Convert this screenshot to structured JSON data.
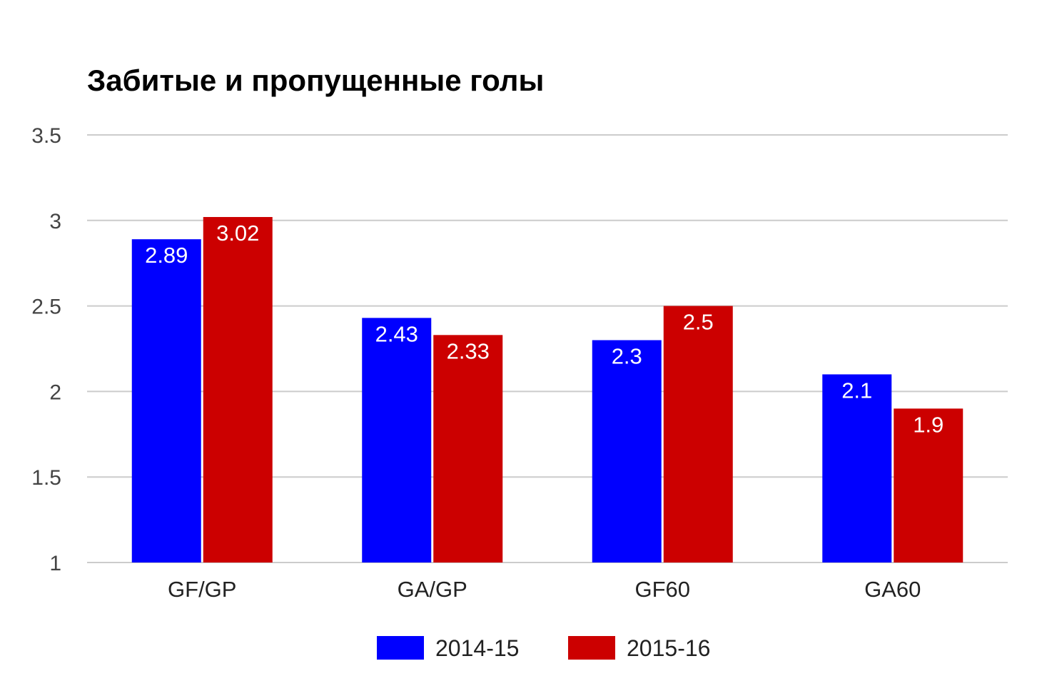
{
  "chart_data": {
    "type": "bar",
    "title": "Забитые и пропущенные голы",
    "xlabel": "",
    "ylabel": "",
    "categories": [
      "GF/GP",
      "GA/GP",
      "GF60",
      "GA60"
    ],
    "series": [
      {
        "name": "2014-15",
        "color": "#0000ff",
        "values": [
          2.89,
          2.43,
          2.3,
          2.1
        ]
      },
      {
        "name": "2015-16",
        "color": "#cc0000",
        "values": [
          3.02,
          2.33,
          2.5,
          1.9
        ]
      }
    ],
    "data_labels": [
      [
        "2.89",
        "2.43",
        "2.3",
        "2.1"
      ],
      [
        "3.02",
        "2.33",
        "2.5",
        "1.9"
      ]
    ],
    "ylim": [
      1,
      3.5
    ],
    "yticks": [
      "1",
      "1.5",
      "2",
      "2.5",
      "3",
      "3.5"
    ],
    "grid": true,
    "legend_position": "bottom"
  }
}
